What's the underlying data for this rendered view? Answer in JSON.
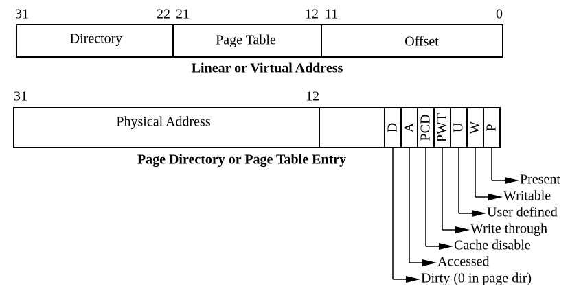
{
  "linear": {
    "bits": [
      "31",
      "22",
      "21",
      "12",
      "11",
      "0"
    ],
    "fields": [
      "Directory",
      "Page Table",
      "Offset"
    ],
    "caption": "Linear or Virtual Address"
  },
  "entry": {
    "bits": [
      "31",
      "12"
    ],
    "field": "Physical Address",
    "flags": [
      "D",
      "A",
      "PCD",
      "PWT",
      "U",
      "W",
      "P"
    ],
    "caption": "Page Directory or Page Table Entry"
  },
  "legend": [
    "Present",
    "Writable",
    "User defined",
    "Write through",
    "Cache disable",
    "Accessed",
    "Dirty (0 in page dir)"
  ]
}
